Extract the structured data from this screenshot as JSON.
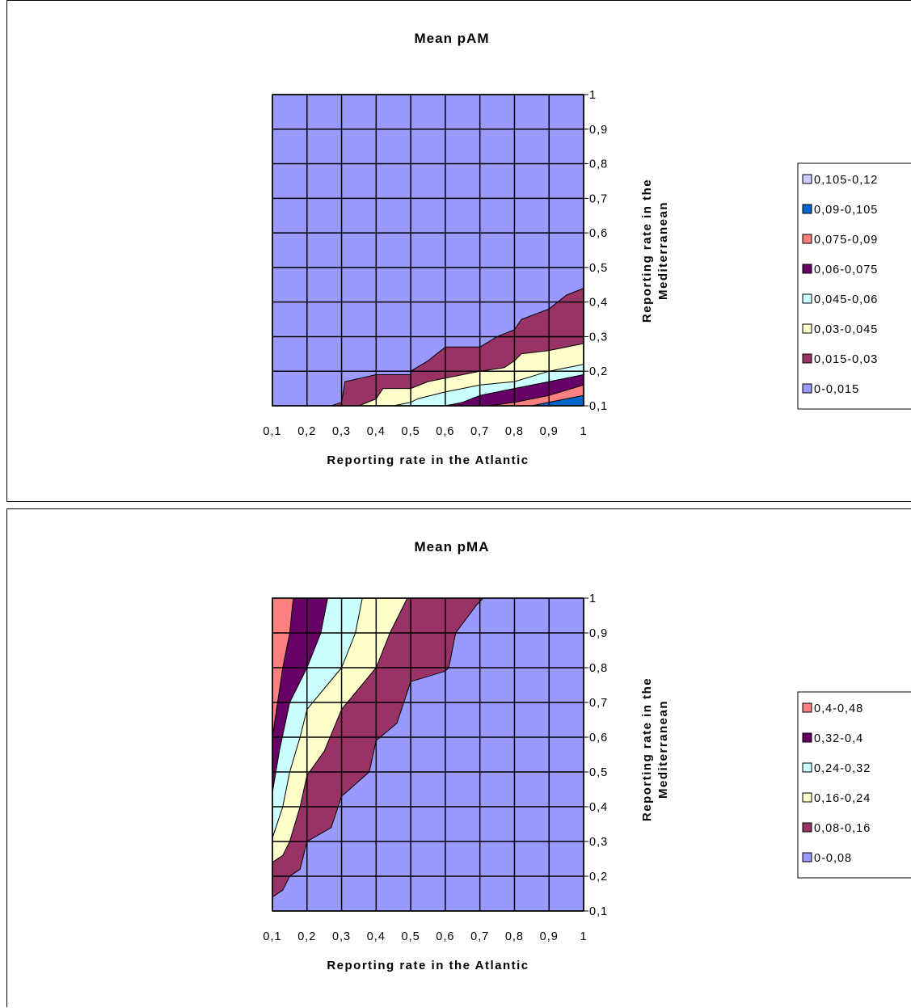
{
  "chart_data": [
    {
      "type": "contour",
      "title": "Mean pAM",
      "xlabel": "Reporting rate in the Atlantic",
      "ylabel": [
        "Reporting rate in the",
        "Mediterranean"
      ],
      "x_ticks": [
        "0,1",
        "0,2",
        "0,3",
        "0,4",
        "0,5",
        "0,6",
        "0,7",
        "0,8",
        "0,9",
        "1"
      ],
      "y_ticks": [
        "1",
        "0,9",
        "0,8",
        "0,7",
        "0,6",
        "0,5",
        "0,4",
        "0,3",
        "0,2",
        "0,1"
      ],
      "xlim": [
        0.1,
        1
      ],
      "ylim": [
        0.1,
        1
      ],
      "grid": true,
      "legend_position": "right",
      "legend": [
        {
          "label": "0,105-0,12",
          "color": "#ccccff"
        },
        {
          "label": "0,09-0,105",
          "color": "#0066cc"
        },
        {
          "label": "0,075-0,09",
          "color": "#ff8080"
        },
        {
          "label": "0,06-0,075",
          "color": "#660066"
        },
        {
          "label": "0,045-0,06",
          "color": "#ccffff"
        },
        {
          "label": "0,03-0,045",
          "color": "#ffffcc"
        },
        {
          "label": "0,015-0,03",
          "color": "#993366"
        },
        {
          "label": "0-0,015",
          "color": "#9999ff"
        }
      ],
      "bands": [
        {
          "color": "#993366",
          "points": [
            [
              0.27,
              0.1
            ],
            [
              0.3,
              0.11
            ],
            [
              0.31,
              0.17
            ],
            [
              0.4,
              0.19
            ],
            [
              0.5,
              0.19
            ],
            [
              0.5,
              0.2
            ],
            [
              0.55,
              0.23
            ],
            [
              0.6,
              0.27
            ],
            [
              0.7,
              0.27
            ],
            [
              0.75,
              0.3
            ],
            [
              0.8,
              0.32
            ],
            [
              0.82,
              0.35
            ],
            [
              0.9,
              0.38
            ],
            [
              0.95,
              0.42
            ],
            [
              1,
              0.44
            ],
            [
              1,
              0.1
            ]
          ]
        },
        {
          "color": "#ffffcc",
          "points": [
            [
              0.35,
              0.1
            ],
            [
              0.4,
              0.12
            ],
            [
              0.42,
              0.15
            ],
            [
              0.5,
              0.15
            ],
            [
              0.55,
              0.17
            ],
            [
              0.6,
              0.18
            ],
            [
              0.7,
              0.2
            ],
            [
              0.77,
              0.21
            ],
            [
              0.8,
              0.23
            ],
            [
              0.82,
              0.25
            ],
            [
              0.9,
              0.26
            ],
            [
              1,
              0.28
            ],
            [
              1,
              0.1
            ]
          ]
        },
        {
          "color": "#ccffff",
          "points": [
            [
              0.45,
              0.1
            ],
            [
              0.5,
              0.11
            ],
            [
              0.52,
              0.12
            ],
            [
              0.6,
              0.14
            ],
            [
              0.7,
              0.16
            ],
            [
              0.8,
              0.17
            ],
            [
              0.9,
              0.2
            ],
            [
              1,
              0.22
            ],
            [
              1,
              0.1
            ]
          ]
        },
        {
          "color": "#660066",
          "points": [
            [
              0.6,
              0.1
            ],
            [
              0.65,
              0.11
            ],
            [
              0.7,
              0.13
            ],
            [
              0.75,
              0.14
            ],
            [
              0.8,
              0.15
            ],
            [
              0.9,
              0.17
            ],
            [
              1,
              0.19
            ],
            [
              1,
              0.1
            ]
          ]
        },
        {
          "color": "#ff8080",
          "points": [
            [
              0.73,
              0.1
            ],
            [
              0.8,
              0.11
            ],
            [
              0.9,
              0.13
            ],
            [
              1,
              0.16
            ],
            [
              1,
              0.1
            ]
          ]
        },
        {
          "color": "#0066cc",
          "points": [
            [
              0.85,
              0.1
            ],
            [
              0.95,
              0.12
            ],
            [
              1,
              0.13
            ],
            [
              1,
              0.1
            ]
          ]
        }
      ]
    },
    {
      "type": "contour",
      "title": "Mean pMA",
      "xlabel": "Reporting rate in the Atlantic",
      "ylabel": [
        "Reporting rate in the",
        "Mediterranean"
      ],
      "x_ticks": [
        "0,1",
        "0,2",
        "0,3",
        "0,4",
        "0,5",
        "0,6",
        "0,7",
        "0,8",
        "0,9",
        "1"
      ],
      "y_ticks": [
        "1",
        "0,9",
        "0,8",
        "0,7",
        "0,6",
        "0,5",
        "0,4",
        "0,3",
        "0,2",
        "0,1"
      ],
      "xlim": [
        0.1,
        1
      ],
      "ylim": [
        0.1,
        1
      ],
      "grid": true,
      "legend_position": "right",
      "legend": [
        {
          "label": "0,4-0,48",
          "color": "#ff8080"
        },
        {
          "label": "0,32-0,4",
          "color": "#660066"
        },
        {
          "label": "0,24-0,32",
          "color": "#ccffff"
        },
        {
          "label": "0,16-0,24",
          "color": "#ffffcc"
        },
        {
          "label": "0,08-0,16",
          "color": "#993366"
        },
        {
          "label": "0-0,08",
          "color": "#9999ff"
        }
      ],
      "bands": [
        {
          "color": "#993366",
          "points": [
            [
              0.1,
              1
            ],
            [
              0.71,
              1
            ],
            [
              0.69,
              0.98
            ],
            [
              0.63,
              0.9
            ],
            [
              0.61,
              0.8
            ],
            [
              0.6,
              0.79
            ],
            [
              0.5,
              0.76
            ],
            [
              0.46,
              0.64
            ],
            [
              0.4,
              0.59
            ],
            [
              0.38,
              0.5
            ],
            [
              0.3,
              0.43
            ],
            [
              0.27,
              0.34
            ],
            [
              0.2,
              0.3
            ],
            [
              0.18,
              0.22
            ],
            [
              0.15,
              0.2
            ],
            [
              0.13,
              0.16
            ],
            [
              0.1,
              0.14
            ]
          ]
        },
        {
          "color": "#ffffcc",
          "points": [
            [
              0.1,
              1
            ],
            [
              0.49,
              1
            ],
            [
              0.44,
              0.9
            ],
            [
              0.4,
              0.8
            ],
            [
              0.3,
              0.68
            ],
            [
              0.25,
              0.56
            ],
            [
              0.2,
              0.49
            ],
            [
              0.18,
              0.4
            ],
            [
              0.15,
              0.3
            ],
            [
              0.13,
              0.26
            ],
            [
              0.1,
              0.24
            ]
          ]
        },
        {
          "color": "#ccffff",
          "points": [
            [
              0.1,
              1
            ],
            [
              0.36,
              1
            ],
            [
              0.34,
              0.9
            ],
            [
              0.3,
              0.8
            ],
            [
              0.2,
              0.68
            ],
            [
              0.18,
              0.6
            ],
            [
              0.15,
              0.5
            ],
            [
              0.13,
              0.4
            ],
            [
              0.1,
              0.31
            ]
          ]
        },
        {
          "color": "#660066",
          "points": [
            [
              0.1,
              1
            ],
            [
              0.26,
              1
            ],
            [
              0.24,
              0.9
            ],
            [
              0.2,
              0.8
            ],
            [
              0.15,
              0.7
            ],
            [
              0.12,
              0.56
            ],
            [
              0.1,
              0.44
            ]
          ]
        },
        {
          "color": "#ff8080",
          "points": [
            [
              0.1,
              1
            ],
            [
              0.16,
              1
            ],
            [
              0.15,
              0.9
            ],
            [
              0.13,
              0.8
            ],
            [
              0.1,
              0.6
            ]
          ]
        }
      ]
    }
  ]
}
